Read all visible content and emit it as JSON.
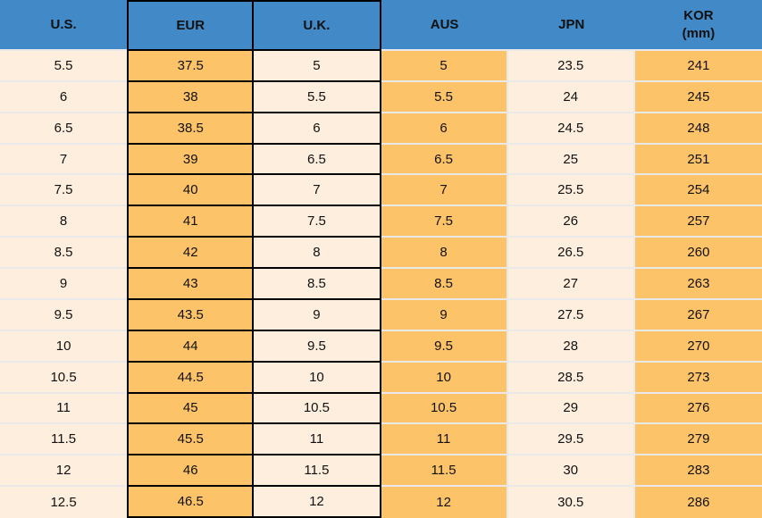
{
  "colors": {
    "header_blue": "#4289c8",
    "orange_cell": "#fdc368",
    "cream_cell": "#fdeedd",
    "highlight_border": "#000000",
    "gridline": "#e9e9e9",
    "text": "#111111"
  },
  "table": {
    "headers": [
      "U.S.",
      "EUR",
      "U.K.",
      "AUS",
      "JPN",
      "KOR\n(mm)"
    ]
  },
  "chart_data": {
    "type": "table",
    "columns": [
      "U.S.",
      "EUR",
      "U.K.",
      "AUS",
      "JPN",
      "KOR (mm)"
    ],
    "highlighted_columns": [
      "EUR",
      "U.K."
    ],
    "rows": [
      [
        "5.5",
        "37.5",
        "5",
        "5",
        "23.5",
        "241"
      ],
      [
        "6",
        "38",
        "5.5",
        "5.5",
        "24",
        "245"
      ],
      [
        "6.5",
        "38.5",
        "6",
        "6",
        "24.5",
        "248"
      ],
      [
        "7",
        "39",
        "6.5",
        "6.5",
        "25",
        "251"
      ],
      [
        "7.5",
        "40",
        "7",
        "7",
        "25.5",
        "254"
      ],
      [
        "8",
        "41",
        "7.5",
        "7.5",
        "26",
        "257"
      ],
      [
        "8.5",
        "42",
        "8",
        "8",
        "26.5",
        "260"
      ],
      [
        "9",
        "43",
        "8.5",
        "8.5",
        "27",
        "263"
      ],
      [
        "9.5",
        "43.5",
        "9",
        "9",
        "27.5",
        "267"
      ],
      [
        "10",
        "44",
        "9.5",
        "9.5",
        "28",
        "270"
      ],
      [
        "10.5",
        "44.5",
        "10",
        "10",
        "28.5",
        "273"
      ],
      [
        "11",
        "45",
        "10.5",
        "10.5",
        "29",
        "276"
      ],
      [
        "11.5",
        "45.5",
        "11",
        "11",
        "29.5",
        "279"
      ],
      [
        "12",
        "46",
        "11.5",
        "11.5",
        "30",
        "283"
      ],
      [
        "12.5",
        "46.5",
        "12",
        "12",
        "30.5",
        "286"
      ]
    ]
  }
}
